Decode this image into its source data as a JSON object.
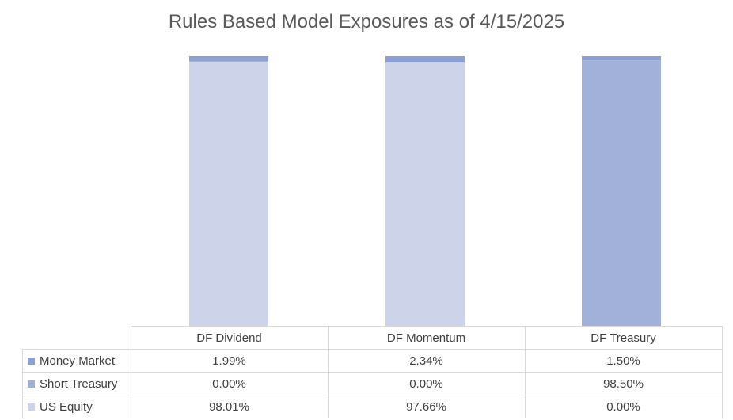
{
  "chart_data": {
    "type": "bar",
    "stacked": true,
    "title": "Rules Based Model Exposures as of 4/15/2025",
    "categories": [
      "DF Dividend",
      "DF Momentum",
      "DF Treasury"
    ],
    "ylim": [
      0,
      100
    ],
    "grid": false,
    "legend": "data-table",
    "stack_order_bottom_to_top": [
      "US Equity",
      "Short Treasury",
      "Money Market"
    ],
    "series": [
      {
        "name": "Money Market",
        "color": "#8ea0d3",
        "values": [
          1.99,
          2.34,
          1.5
        ],
        "labels": [
          "1.99%",
          "2.34%",
          "1.50%"
        ]
      },
      {
        "name": "Short Treasury",
        "color": "#a1b1da",
        "values": [
          0.0,
          0.0,
          98.5
        ],
        "labels": [
          "0.00%",
          "0.00%",
          "98.50%"
        ]
      },
      {
        "name": "US Equity",
        "color": "#cdd3e8",
        "values": [
          98.01,
          97.66,
          0.0
        ],
        "labels": [
          "98.01%",
          "97.66%",
          "0.00%"
        ]
      }
    ]
  }
}
